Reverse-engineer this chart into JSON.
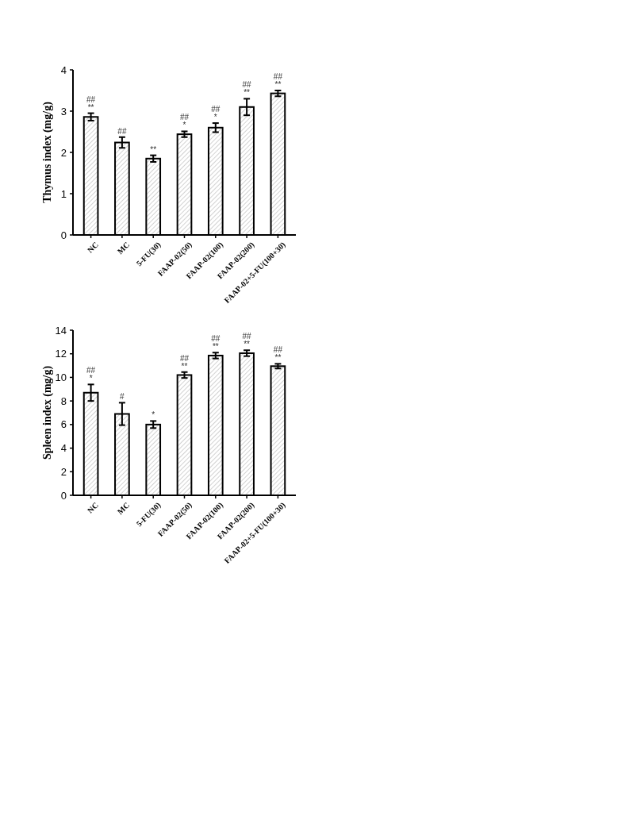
{
  "chart_data": [
    {
      "type": "bar",
      "ylabel": "Thymus index (mg/g)",
      "categories": [
        "NC",
        "MC",
        "5-FU(30)",
        "FAAP-02(50)",
        "FAAP-02(100)",
        "FAAP-02(200)",
        "FAAP-02+5-FU(100+30)"
      ],
      "values": [
        2.86,
        2.24,
        1.85,
        2.44,
        2.6,
        3.1,
        3.43
      ],
      "errors": [
        0.09,
        0.13,
        0.08,
        0.07,
        0.11,
        0.2,
        0.07
      ],
      "color": "#000000",
      "ylim": [
        0,
        4
      ],
      "yticks": [
        0,
        1,
        2,
        3,
        4
      ],
      "grid": false,
      "annotations": [
        {
          "text": "**",
          "x": "NC",
          "y": 2.95
        },
        {
          "text": "##",
          "x": "NC",
          "y": 2.95
        },
        {
          "text": "##",
          "x": "MC",
          "y": 2.37
        },
        {
          "text": "**",
          "x": "5-FU(30)",
          "y": 1.93
        },
        {
          "text": "*",
          "x": "FAAP-02(50)",
          "y": 2.51
        },
        {
          "text": "##",
          "x": "FAAP-02(50)",
          "y": 2.51
        },
        {
          "text": "*",
          "x": "FAAP-02(100)",
          "y": 2.71
        },
        {
          "text": "##",
          "x": "FAAP-02(100)",
          "y": 2.71
        },
        {
          "text": "**",
          "x": "FAAP-02(200)",
          "y": 3.3
        },
        {
          "text": "##",
          "x": "FAAP-02(200)",
          "y": 3.3
        },
        {
          "text": "**",
          "x": "FAAP-02+5-FU(100+30)",
          "y": 3.5
        },
        {
          "text": "##",
          "x": "FAAP-02+5-FU(100+30)",
          "y": 3.5
        }
      ]
    },
    {
      "type": "bar",
      "ylabel": "Spleen index (mg/g)",
      "categories": [
        "NC",
        "MC",
        "5-FU(30)",
        "FAAP-02(50)",
        "FAAP-02(100)",
        "FAAP-02(200)",
        "FAAP-02+5-FU(100+30)"
      ],
      "values": [
        8.7,
        6.9,
        6.0,
        10.2,
        11.85,
        12.05,
        10.95
      ],
      "errors": [
        0.7,
        0.95,
        0.3,
        0.25,
        0.25,
        0.25,
        0.2
      ],
      "color": "#000000",
      "ylim": [
        0,
        14
      ],
      "yticks": [
        0,
        2,
        4,
        6,
        8,
        10,
        12,
        14
      ],
      "grid": false,
      "annotations": [
        {
          "text": "*",
          "x": "NC",
          "y": 9.4
        },
        {
          "text": "##",
          "x": "NC",
          "y": 9.4
        },
        {
          "text": "#",
          "x": "MC",
          "y": 7.85
        },
        {
          "text": "*",
          "x": "5-FU(30)",
          "y": 6.3
        },
        {
          "text": "**",
          "x": "FAAP-02(50)",
          "y": 10.45
        },
        {
          "text": "##",
          "x": "FAAP-02(50)",
          "y": 10.45
        },
        {
          "text": "**",
          "x": "FAAP-02(100)",
          "y": 12.1
        },
        {
          "text": "##",
          "x": "FAAP-02(100)",
          "y": 12.1
        },
        {
          "text": "**",
          "x": "FAAP-02(200)",
          "y": 12.3
        },
        {
          "text": "##",
          "x": "FAAP-02(200)",
          "y": 12.3
        },
        {
          "text": "**",
          "x": "FAAP-02+5-FU(100+30)",
          "y": 11.15
        },
        {
          "text": "##",
          "x": "FAAP-02+5-FU(100+30)",
          "y": 11.15
        }
      ]
    }
  ]
}
